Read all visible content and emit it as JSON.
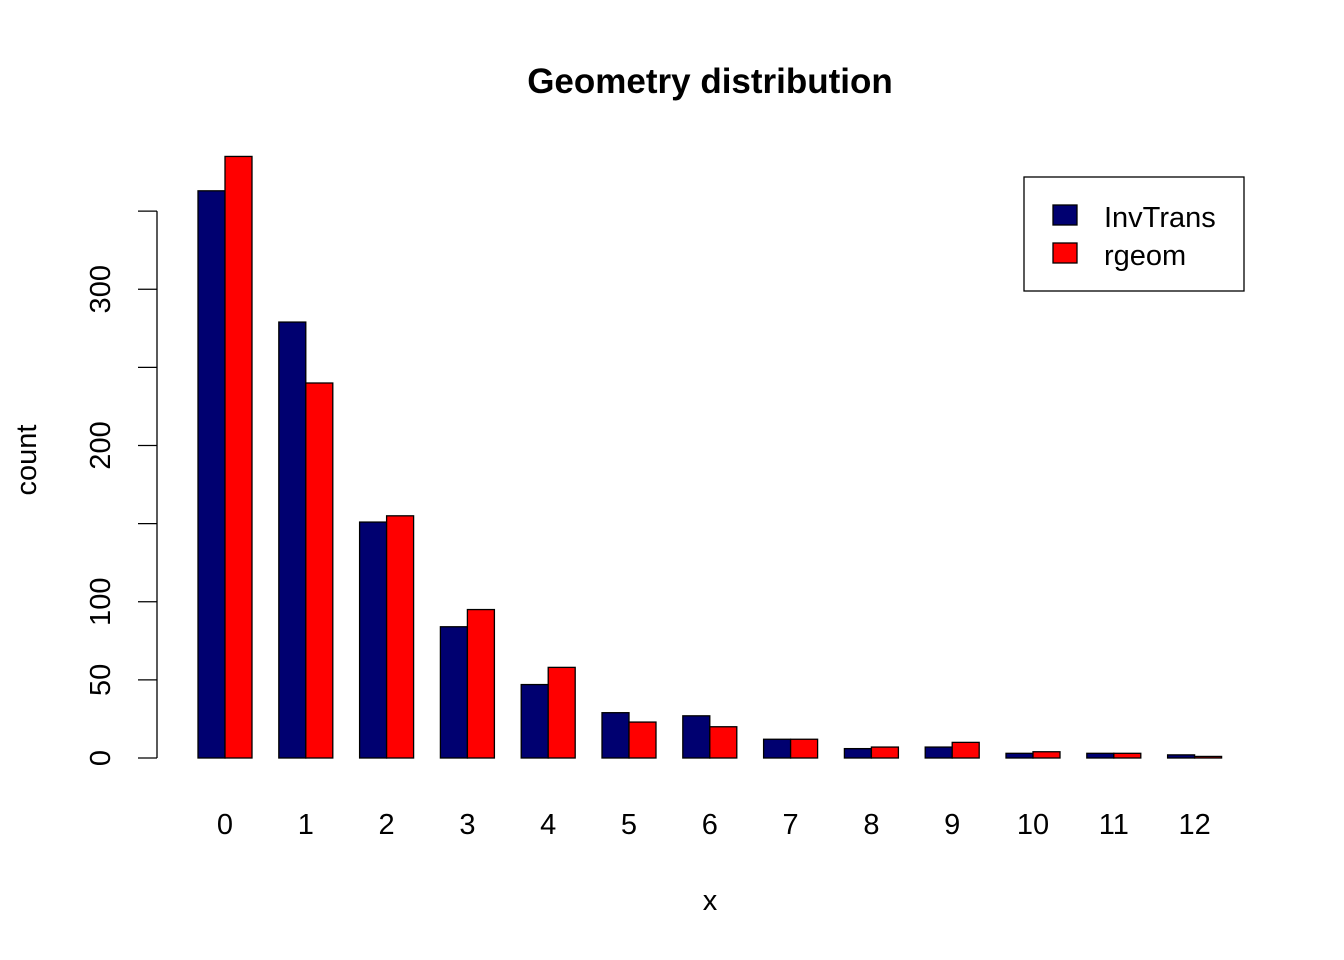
{
  "chart_data": {
    "type": "bar",
    "title": "Geometry distribution",
    "xlabel": "x",
    "ylabel": "count",
    "categories": [
      "0",
      "1",
      "2",
      "3",
      "4",
      "5",
      "6",
      "7",
      "8",
      "9",
      "10",
      "11",
      "12"
    ],
    "series": [
      {
        "name": "InvTrans",
        "color": "#000070",
        "values": [
          363,
          279,
          151,
          84,
          47,
          29,
          27,
          12,
          6,
          7,
          3,
          3,
          2
        ]
      },
      {
        "name": "rgeom",
        "color": "#ff0000",
        "values": [
          385,
          240,
          155,
          95,
          58,
          23,
          20,
          12,
          7,
          10,
          4,
          3,
          1
        ]
      }
    ],
    "yticks": [
      0,
      50,
      100,
      150,
      200,
      250,
      300,
      350
    ],
    "ytick_labels": [
      "0",
      "50",
      "100",
      "",
      "200",
      "",
      "300",
      ""
    ],
    "ylim": [
      0,
      385
    ],
    "legend_position": "top-right",
    "grid": false
  }
}
